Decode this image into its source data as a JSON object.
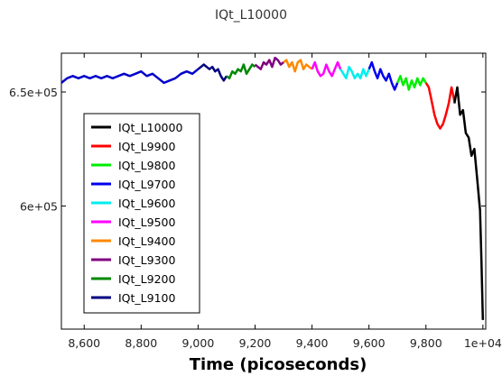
{
  "chart_data": {
    "type": "line",
    "title": "IQt_L10000",
    "xlabel": "Time (picoseconds)",
    "ylabel": "",
    "xlim": [
      8520,
      10010
    ],
    "ylim": [
      546000,
      667000
    ],
    "x_ticks": [
      {
        "value": 8600,
        "label": "8,600"
      },
      {
        "value": 8800,
        "label": "8,800"
      },
      {
        "value": 9000,
        "label": "9,000"
      },
      {
        "value": 9200,
        "label": "9,200"
      },
      {
        "value": 9400,
        "label": "9,400"
      },
      {
        "value": 9600,
        "label": "9,600"
      },
      {
        "value": 9800,
        "label": "9,800"
      },
      {
        "value": 10000,
        "label": "1e+04"
      }
    ],
    "y_ticks": [
      {
        "value": 600000,
        "label": "6e+05"
      },
      {
        "value": 650000,
        "label": "6.5e+05"
      }
    ],
    "grid": false,
    "legend_position": "center-left",
    "series": [
      {
        "name": "IQt_L10000",
        "color": "#000000",
        "x": [
          9900,
          9910,
          9920,
          9930,
          9940,
          9950,
          9960,
          9970,
          9980,
          9990,
          9995,
          10000
        ],
        "y": [
          645000,
          652000,
          640000,
          642000,
          632000,
          630000,
          622000,
          625000,
          612000,
          598000,
          575000,
          550000
        ]
      },
      {
        "name": "IQt_L9900",
        "color": "#ff0000",
        "x": [
          9800,
          9810,
          9820,
          9830,
          9840,
          9850,
          9860,
          9870,
          9880,
          9890,
          9900
        ],
        "y": [
          654000,
          652000,
          646000,
          640000,
          636000,
          634000,
          636000,
          640000,
          645000,
          652000,
          646000
        ]
      },
      {
        "name": "IQt_L9800",
        "color": "#00ee00",
        "x": [
          9700,
          9710,
          9720,
          9730,
          9740,
          9750,
          9760,
          9770,
          9780,
          9790,
          9800
        ],
        "y": [
          654000,
          657000,
          653000,
          656000,
          651000,
          655000,
          652000,
          656000,
          653000,
          656000,
          654000
        ]
      },
      {
        "name": "IQt_L9700",
        "color": "#0000ee",
        "x": [
          9600,
          9610,
          9620,
          9630,
          9640,
          9650,
          9660,
          9670,
          9680,
          9690,
          9700
        ],
        "y": [
          660000,
          663000,
          659000,
          656000,
          660000,
          657000,
          655000,
          658000,
          654000,
          651000,
          654000
        ]
      },
      {
        "name": "IQt_L9600",
        "color": "#00eeee",
        "x": [
          9500,
          9510,
          9520,
          9530,
          9540,
          9550,
          9560,
          9570,
          9580,
          9590,
          9600
        ],
        "y": [
          660000,
          658000,
          656000,
          661000,
          659000,
          656000,
          658000,
          656000,
          660000,
          657000,
          660000
        ]
      },
      {
        "name": "IQt_L9500",
        "color": "#ff00ff",
        "x": [
          9400,
          9410,
          9420,
          9430,
          9440,
          9450,
          9460,
          9470,
          9480,
          9490,
          9500
        ],
        "y": [
          660000,
          663000,
          659000,
          657000,
          658000,
          662000,
          659000,
          657000,
          660000,
          663000,
          660000
        ]
      },
      {
        "name": "IQt_L9400",
        "color": "#ff8800",
        "x": [
          9300,
          9310,
          9320,
          9330,
          9340,
          9350,
          9360,
          9370,
          9380,
          9390,
          9400
        ],
        "y": [
          663000,
          664000,
          661000,
          663000,
          659000,
          663000,
          664000,
          660000,
          662000,
          661000,
          660000
        ]
      },
      {
        "name": "IQt_L9300",
        "color": "#800080",
        "x": [
          9200,
          9210,
          9220,
          9230,
          9240,
          9250,
          9260,
          9270,
          9280,
          9290,
          9300
        ],
        "y": [
          662000,
          661000,
          660000,
          663000,
          662000,
          664000,
          661000,
          665000,
          664000,
          662000,
          663000
        ]
      },
      {
        "name": "IQt_L9200",
        "color": "#008800",
        "x": [
          9100,
          9110,
          9120,
          9130,
          9140,
          9150,
          9160,
          9170,
          9180,
          9190,
          9200
        ],
        "y": [
          657000,
          656000,
          659000,
          658000,
          660000,
          659000,
          662000,
          658000,
          660000,
          662000,
          661000
        ]
      },
      {
        "name": "IQt_L9100",
        "color": "#000080",
        "x": [
          9000,
          9010,
          9020,
          9030,
          9040,
          9050,
          9060,
          9070,
          9080,
          9090,
          9100
        ],
        "y": [
          660000,
          661000,
          662000,
          661000,
          660000,
          661000,
          659000,
          660000,
          657000,
          655000,
          657000
        ]
      },
      {
        "name": "",
        "color": "#0000cc",
        "x": [
          8520,
          8540,
          8560,
          8580,
          8600,
          8620,
          8640,
          8660,
          8680,
          8700,
          8720,
          8740,
          8760,
          8780,
          8800,
          8820,
          8840,
          8860,
          8880,
          8900,
          8920,
          8940,
          8960,
          8980,
          9000
        ],
        "y": [
          654000,
          656000,
          657000,
          656000,
          657000,
          656000,
          657000,
          656000,
          657000,
          656000,
          657000,
          658000,
          657000,
          658000,
          659000,
          657000,
          658000,
          656000,
          654000,
          655000,
          656000,
          658000,
          659000,
          658000,
          660000
        ]
      }
    ]
  }
}
